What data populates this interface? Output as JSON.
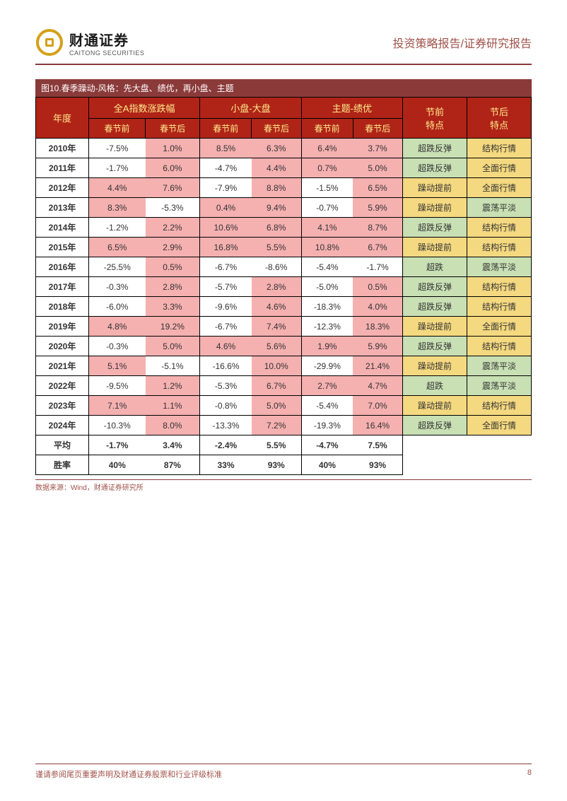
{
  "header": {
    "company_cn": "财通证券",
    "company_en": "CAITONG SECURITIES",
    "report_type": "投资策略报告/证券研究报告"
  },
  "figure": {
    "title": "图10.春季躁动-风格：先大盘、绩优，再小盘、主题",
    "source": "数据来源：Wind，财通证券研究所"
  },
  "table": {
    "header_row1": {
      "year": "年度",
      "group1": "全A指数涨跌幅",
      "group2": "小盘-大盘",
      "group3": "主题-绩优",
      "pre": "节前\n特点",
      "post": "节后\n特点"
    },
    "header_row2": {
      "c1": "春节前",
      "c2": "春节后",
      "c3": "春节前",
      "c4": "春节后",
      "c5": "春节前",
      "c6": "春节后"
    },
    "rows": [
      {
        "year": "2010年",
        "v": [
          "-7.5%",
          "1.0%",
          "8.5%",
          "6.3%",
          "6.4%",
          "3.7%"
        ],
        "pre": "超跌反弹",
        "post": "结构行情"
      },
      {
        "year": "2011年",
        "v": [
          "-1.7%",
          "6.0%",
          "-4.7%",
          "4.4%",
          "0.7%",
          "5.0%"
        ],
        "pre": "超跌反弹",
        "post": "全面行情"
      },
      {
        "year": "2012年",
        "v": [
          "4.4%",
          "7.6%",
          "-7.9%",
          "8.8%",
          "-1.5%",
          "6.5%"
        ],
        "pre": "躁动提前",
        "post": "全面行情"
      },
      {
        "year": "2013年",
        "v": [
          "8.3%",
          "-5.3%",
          "0.4%",
          "9.4%",
          "-0.7%",
          "5.9%"
        ],
        "pre": "躁动提前",
        "post": "震荡平淡"
      },
      {
        "year": "2014年",
        "v": [
          "-1.2%",
          "2.2%",
          "10.6%",
          "6.8%",
          "4.1%",
          "8.7%"
        ],
        "pre": "超跌反弹",
        "post": "结构行情"
      },
      {
        "year": "2015年",
        "v": [
          "6.5%",
          "2.9%",
          "16.8%",
          "5.5%",
          "10.8%",
          "6.7%"
        ],
        "pre": "躁动提前",
        "post": "结构行情"
      },
      {
        "year": "2016年",
        "v": [
          "-25.5%",
          "0.5%",
          "-6.7%",
          "-8.6%",
          "-5.4%",
          "-1.7%"
        ],
        "pre": "超跌",
        "post": "震荡平淡"
      },
      {
        "year": "2017年",
        "v": [
          "-0.3%",
          "2.8%",
          "-5.7%",
          "2.8%",
          "-5.0%",
          "0.5%"
        ],
        "pre": "超跌反弹",
        "post": "结构行情"
      },
      {
        "year": "2018年",
        "v": [
          "-6.0%",
          "3.3%",
          "-9.6%",
          "4.6%",
          "-18.3%",
          "4.0%"
        ],
        "pre": "超跌反弹",
        "post": "结构行情"
      },
      {
        "year": "2019年",
        "v": [
          "4.8%",
          "19.2%",
          "-6.7%",
          "7.4%",
          "-12.3%",
          "18.3%"
        ],
        "pre": "躁动提前",
        "post": "全面行情"
      },
      {
        "year": "2020年",
        "v": [
          "-0.3%",
          "5.0%",
          "4.6%",
          "5.6%",
          "1.9%",
          "5.9%"
        ],
        "pre": "超跌反弹",
        "post": "结构行情"
      },
      {
        "year": "2021年",
        "v": [
          "5.1%",
          "-5.1%",
          "-16.6%",
          "10.0%",
          "-29.9%",
          "21.4%"
        ],
        "pre": "躁动提前",
        "post": "震荡平淡"
      },
      {
        "year": "2022年",
        "v": [
          "-9.5%",
          "1.2%",
          "-5.3%",
          "6.7%",
          "2.7%",
          "4.7%"
        ],
        "pre": "超跌",
        "post": "震荡平淡"
      },
      {
        "year": "2023年",
        "v": [
          "7.1%",
          "1.1%",
          "-0.8%",
          "5.0%",
          "-5.4%",
          "7.0%"
        ],
        "pre": "躁动提前",
        "post": "结构行情"
      },
      {
        "year": "2024年",
        "v": [
          "-10.3%",
          "8.0%",
          "-13.3%",
          "7.2%",
          "-19.3%",
          "16.4%"
        ],
        "pre": "超跌反弹",
        "post": "全面行情"
      }
    ],
    "summary": [
      {
        "year": "平均",
        "v": [
          "-1.7%",
          "3.4%",
          "-2.4%",
          "5.5%",
          "-4.7%",
          "7.5%"
        ]
      },
      {
        "year": "胜率",
        "v": [
          "40%",
          "87%",
          "33%",
          "93%",
          "40%",
          "93%"
        ]
      }
    ]
  },
  "colors": {
    "pink": "#f5b0b0",
    "green": "#c8e0b4",
    "yellow": "#f5d980",
    "white": "#ffffff",
    "header_bg": "#b02418",
    "header_fg": "#ffeb8c",
    "title_bar": "#8b3a3a"
  },
  "cell_colors": {
    "rows": [
      [
        "white",
        "pink",
        "pink",
        "pink",
        "pink",
        "pink",
        "green",
        "yellow"
      ],
      [
        "white",
        "pink",
        "white",
        "pink",
        "pink",
        "pink",
        "green",
        "yellow"
      ],
      [
        "pink",
        "pink",
        "white",
        "pink",
        "white",
        "pink",
        "yellow",
        "yellow"
      ],
      [
        "pink",
        "white",
        "pink",
        "pink",
        "white",
        "pink",
        "yellow",
        "green"
      ],
      [
        "white",
        "pink",
        "pink",
        "pink",
        "pink",
        "pink",
        "green",
        "yellow"
      ],
      [
        "pink",
        "pink",
        "pink",
        "pink",
        "pink",
        "pink",
        "yellow",
        "yellow"
      ],
      [
        "white",
        "pink",
        "white",
        "white",
        "white",
        "white",
        "green",
        "green"
      ],
      [
        "white",
        "pink",
        "white",
        "pink",
        "white",
        "pink",
        "green",
        "yellow"
      ],
      [
        "white",
        "pink",
        "white",
        "pink",
        "white",
        "pink",
        "green",
        "yellow"
      ],
      [
        "pink",
        "pink",
        "white",
        "pink",
        "white",
        "pink",
        "yellow",
        "yellow"
      ],
      [
        "white",
        "pink",
        "pink",
        "pink",
        "pink",
        "pink",
        "green",
        "yellow"
      ],
      [
        "pink",
        "white",
        "white",
        "pink",
        "white",
        "pink",
        "yellow",
        "green"
      ],
      [
        "white",
        "pink",
        "white",
        "pink",
        "pink",
        "pink",
        "green",
        "green"
      ],
      [
        "pink",
        "pink",
        "white",
        "pink",
        "white",
        "pink",
        "yellow",
        "yellow"
      ],
      [
        "white",
        "pink",
        "white",
        "pink",
        "white",
        "pink",
        "green",
        "yellow"
      ]
    ]
  },
  "footer": {
    "disclaimer": "谨请参阅尾页重要声明及财通证券股票和行业评级标准",
    "page": "8"
  }
}
